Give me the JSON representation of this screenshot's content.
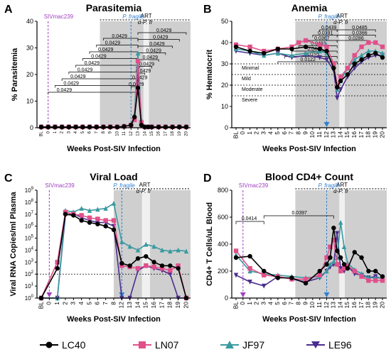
{
  "colors": {
    "LC40": "#000000",
    "LN07": "#e0508a",
    "JF97": "#3a9aa0",
    "LE96": "#4b2d8e",
    "siv": "#a040c0",
    "pf": "#2f7fd0",
    "shade": "#cfcfcf",
    "art": "#f0f0f0"
  },
  "legend": [
    "LC40",
    "LN07",
    "JF97",
    "LE96"
  ],
  "chart_data": [
    {
      "type": "line",
      "panel": "A",
      "title": "Parasitemia",
      "ylabel": "% Parasitemia",
      "xlabel": "Weeks Post-SIV Infection",
      "ylim": [
        0,
        40
      ],
      "yticks": [
        "0",
        "10",
        "20",
        "30",
        "40"
      ],
      "xticks": [
        "BL",
        "0",
        "1",
        "2",
        "3",
        "4",
        "5",
        "6",
        "7",
        "8",
        "9",
        "10",
        "11",
        "12",
        "13",
        "14",
        "15",
        "16",
        "17",
        "18",
        "19",
        "20"
      ],
      "annotations": {
        "siv": "SIVmac239",
        "pf": "P. fragile",
        "art": "ART",
        "ap": "α-P. fr"
      },
      "bracket_values": [
        "0.0429",
        "0.0429",
        "0.0429",
        "0.0429",
        "0.0429",
        "0.0429",
        "0.0429",
        "0.0429",
        "0.0429",
        "0.0429",
        "0.0429",
        "0.0429",
        "0.0429",
        "0.0429",
        "0.0429",
        "0.0429",
        "0.0429",
        "0.0429"
      ],
      "series": [
        {
          "name": "LC40",
          "x": [
            -1,
            0,
            1,
            2,
            3,
            4,
            5,
            6,
            7,
            8,
            9,
            10,
            11,
            12,
            12.5,
            13,
            13.5,
            14,
            14.5,
            15,
            16,
            17,
            18,
            19,
            20
          ],
          "y": [
            0.3,
            0.3,
            0.3,
            0.3,
            0.3,
            0.3,
            0.3,
            0.3,
            0.3,
            0.3,
            0.3,
            0.3,
            0.5,
            1,
            4,
            15,
            1,
            0.3,
            0.3,
            0.3,
            0.3,
            0.3,
            0.3,
            0.3,
            0.3
          ]
        },
        {
          "name": "LN07",
          "x": [
            -1,
            0,
            1,
            2,
            3,
            4,
            5,
            6,
            7,
            8,
            9,
            10,
            11,
            12,
            12.5,
            13,
            13.5,
            14,
            14.5,
            15,
            16,
            17,
            18,
            19,
            20
          ],
          "y": [
            0.3,
            0.3,
            0.3,
            0.3,
            0.3,
            0.3,
            0.3,
            0.3,
            0.3,
            0.3,
            0.3,
            0.3,
            0.5,
            1,
            3,
            25,
            2,
            0.3,
            0.3,
            0.3,
            0.3,
            0.3,
            0.3,
            0.3,
            0.3
          ]
        },
        {
          "name": "JF97",
          "x": [
            -1,
            0,
            1,
            2,
            3,
            4,
            5,
            6,
            7,
            8,
            9,
            10,
            11,
            12,
            12.5,
            13,
            13.5,
            14,
            14.5,
            15,
            16,
            17,
            18,
            19,
            20
          ],
          "y": [
            0.3,
            0.3,
            0.3,
            0.3,
            0.3,
            0.3,
            0.3,
            0.3,
            0.3,
            0.3,
            0.3,
            0.3,
            0.5,
            1,
            5,
            28,
            3,
            0.3,
            0.3,
            0.3,
            0.3,
            0.3,
            0.3,
            0.3,
            0.3
          ]
        },
        {
          "name": "LE96",
          "x": [
            -1,
            0,
            1,
            2,
            3,
            4,
            5,
            6,
            7,
            8,
            9,
            10,
            11,
            12,
            12.5,
            13,
            13.5,
            14,
            14.5,
            15,
            16,
            17,
            18,
            19,
            20
          ],
          "y": [
            0.3,
            0.3,
            0.3,
            0.3,
            0.3,
            0.3,
            0.3,
            0.3,
            0.3,
            0.3,
            0.3,
            0.3,
            0.5,
            1,
            3,
            22,
            1.5,
            0.3,
            0.3,
            0.3,
            0.3,
            0.3,
            0.3,
            0.3,
            0.3
          ]
        }
      ]
    },
    {
      "type": "line",
      "panel": "B",
      "title": "Anemia",
      "ylabel": "% Hematocrit",
      "xlabel": "Weeks Post-SIV Infection",
      "ylim": [
        0,
        50
      ],
      "yticks": [
        "0",
        "10",
        "20",
        "30",
        "40",
        "50"
      ],
      "xticks": [
        "BL",
        "0",
        "1",
        "2",
        "3",
        "4",
        "5",
        "6",
        "7",
        "8",
        "9",
        "10",
        "11",
        "12",
        "13",
        "14",
        "15",
        "16",
        "17",
        "18",
        "19",
        "20"
      ],
      "annotations": {
        "pf": "P. fragile",
        "art": "ART",
        "ap": "α-P. fr"
      },
      "bracket_values": [
        "0.0439",
        "0.0391",
        "0.0367",
        "0.0493",
        "0.0448",
        "0.0155",
        "0.0122",
        "0.0485",
        "0.0366",
        "0.0286"
      ],
      "zones": [
        "Minimal",
        "Mild",
        "Moderate",
        "Severe"
      ],
      "series": [
        {
          "name": "LC40",
          "x": [
            -1,
            1,
            3,
            5,
            7,
            9,
            11,
            12,
            13,
            13.5,
            14,
            15,
            16,
            17,
            18,
            19,
            20
          ],
          "y": [
            38,
            36,
            35,
            37,
            37,
            38,
            37,
            36,
            28,
            19,
            22,
            25,
            30,
            32,
            34,
            35,
            33
          ]
        },
        {
          "name": "LN07",
          "x": [
            -1,
            1,
            3,
            5,
            7,
            8,
            9,
            11,
            12,
            13,
            13.5,
            14,
            15,
            16,
            17,
            18,
            19,
            20
          ],
          "y": [
            39,
            38,
            36,
            37,
            38,
            40,
            41,
            39,
            38,
            30,
            20,
            24,
            28,
            34,
            38,
            40,
            40,
            38
          ]
        },
        {
          "name": "JF97",
          "x": [
            -1,
            1,
            3,
            5,
            7,
            9,
            11,
            12,
            13,
            13.5,
            14,
            15,
            16,
            17,
            18,
            19,
            20
          ],
          "y": [
            37,
            36,
            34,
            35,
            34,
            35,
            36,
            35,
            30,
            18,
            22,
            28,
            32,
            34,
            36,
            36,
            35
          ]
        },
        {
          "name": "LE96",
          "x": [
            -1,
            1,
            3,
            5,
            7,
            9,
            11,
            12,
            13,
            13.5,
            14,
            15,
            16,
            17,
            18,
            19,
            20
          ],
          "y": [
            36,
            35,
            34,
            35,
            33,
            34,
            33,
            32,
            27,
            14,
            18,
            24,
            28,
            31,
            33,
            34,
            34
          ]
        }
      ]
    },
    {
      "type": "line",
      "panel": "C",
      "title": "Viral Load",
      "ylabel": "Viral RNA Copies/ml Plasma",
      "xlabel": "Weeks Post-SIV Infection",
      "yscale": "log",
      "ylim": [
        1,
        1000000000
      ],
      "yticks": [
        "10^0",
        "10^1",
        "10^2",
        "10^3",
        "10^4",
        "10^5",
        "10^6",
        "10^7",
        "10^8",
        "10^9"
      ],
      "xticks": [
        "BL",
        "0",
        "1",
        "2",
        "3",
        "4",
        "5",
        "6",
        "7",
        "8",
        "12",
        "13",
        "14",
        "15",
        "16",
        "17",
        "18",
        "19",
        "20"
      ],
      "annotations": {
        "siv": "SIVmac239",
        "pf": "P. fragile",
        "art": "ART",
        "ap": "α-P. fr"
      },
      "threshold": 100,
      "series": [
        {
          "name": "LC40",
          "x": [
            -1,
            1,
            2,
            3,
            4,
            5,
            6,
            7,
            8,
            12,
            13,
            14,
            15,
            16,
            17,
            18,
            19,
            20
          ],
          "y": [
            1,
            300,
            10000000,
            8000000,
            3000000,
            2000000,
            1500000,
            1000000,
            500000,
            800,
            500,
            2000,
            3000,
            1000,
            500,
            500,
            300,
            1
          ]
        },
        {
          "name": "LN07",
          "x": [
            -1,
            1,
            2,
            3,
            4,
            5,
            6,
            7,
            8,
            12,
            13,
            14,
            15,
            16,
            17,
            18,
            19,
            20
          ],
          "y": [
            1,
            1000,
            15000000,
            10000000,
            8000000,
            5000000,
            4000000,
            3000000,
            3000000,
            500,
            400,
            300,
            500,
            400,
            300,
            200,
            500,
            1
          ]
        },
        {
          "name": "JF97",
          "x": [
            -1,
            1,
            2,
            3,
            4,
            5,
            6,
            7,
            8,
            12,
            13,
            14,
            15,
            16,
            17,
            18,
            19,
            20
          ],
          "y": [
            1,
            1,
            20000000,
            15000000,
            30000000,
            20000000,
            25000000,
            30000000,
            80000000,
            50000,
            20000,
            10000,
            30000,
            20000,
            10000,
            8000,
            10000,
            8000
          ]
        },
        {
          "name": "LE96",
          "x": [
            -1,
            1,
            2,
            3,
            4,
            5,
            6,
            7,
            8,
            12,
            13,
            14,
            15,
            16,
            17,
            18,
            19,
            20
          ],
          "y": [
            1,
            1,
            8000000,
            12000000,
            5000000,
            3000000,
            2000000,
            2000000,
            1000000,
            1,
            1,
            200,
            500,
            300,
            200,
            100,
            1,
            1
          ]
        }
      ]
    },
    {
      "type": "line",
      "panel": "D",
      "title": "Blood CD4+ Count",
      "ylabel": "CD4+ T Cells/uL Blood",
      "xlabel": "Weeks Post-SIV Infection",
      "ylim": [
        0,
        800
      ],
      "yticks": [
        "0",
        "200",
        "400",
        "600",
        "800"
      ],
      "xticks": [
        "BL",
        "0",
        "1",
        "2",
        "3",
        "4",
        "5",
        "6",
        "7",
        "8",
        "9",
        "10",
        "11",
        "12",
        "13",
        "14",
        "15",
        "16",
        "17",
        "18",
        "19",
        "20"
      ],
      "annotations": {
        "siv": "SIVmac239",
        "pf": "P. fragile",
        "art": "ART",
        "ap": "α-P. fr"
      },
      "bracket_values": [
        "0.0414",
        "0.0397"
      ],
      "series": [
        {
          "name": "LC40",
          "x": [
            -1,
            1,
            3,
            5,
            7,
            9,
            11,
            12,
            12.5,
            13,
            13.5,
            14,
            14.5,
            15,
            16,
            17,
            18,
            19,
            20
          ],
          "y": [
            300,
            310,
            200,
            150,
            150,
            110,
            200,
            250,
            300,
            520,
            350,
            300,
            250,
            220,
            340,
            300,
            200,
            200,
            160
          ]
        },
        {
          "name": "LN07",
          "x": [
            -1,
            1,
            3,
            5,
            7,
            9,
            11,
            12,
            12.5,
            13,
            13.5,
            14,
            14.5,
            15,
            16,
            17,
            18,
            19,
            20
          ],
          "y": [
            350,
            220,
            170,
            160,
            140,
            140,
            170,
            300,
            380,
            430,
            250,
            200,
            220,
            240,
            200,
            160,
            130,
            130,
            130
          ]
        },
        {
          "name": "JF97",
          "x": [
            -1,
            1,
            3,
            5,
            7,
            9,
            11,
            12,
            12.5,
            13,
            13.5,
            14,
            14.5,
            15,
            16,
            17,
            18,
            19,
            20
          ],
          "y": [
            320,
            200,
            180,
            170,
            160,
            150,
            160,
            200,
            250,
            270,
            300,
            560,
            380,
            260,
            210,
            180,
            150,
            150,
            150
          ]
        },
        {
          "name": "LE96",
          "x": [
            -1,
            1,
            3,
            5,
            7,
            9,
            11,
            12,
            12.5,
            13,
            13.5,
            14,
            14.5,
            15,
            16,
            17,
            18,
            19,
            20
          ],
          "y": [
            170,
            120,
            90,
            160,
            140,
            120,
            150,
            200,
            230,
            250,
            480,
            220,
            200,
            240,
            180,
            170,
            150,
            160,
            140
          ]
        }
      ]
    }
  ]
}
